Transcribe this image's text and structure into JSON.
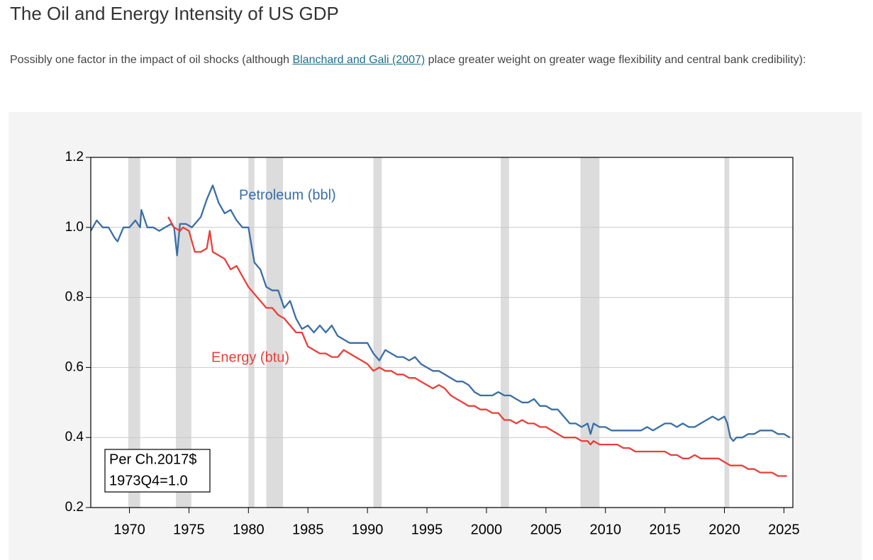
{
  "header": {
    "title": "The Oil and Energy Intensity of US GDP"
  },
  "paragraph": {
    "text_before": "Possibly one factor in the impact of oil shocks (although ",
    "link": "Blanchard and Gali (2007)",
    "text_after": " place greater weight on greater wage flexibility and central bank credibility):"
  },
  "chart_data": {
    "type": "line",
    "xlim": [
      1966.75,
      2025.75
    ],
    "ylim": [
      0.2,
      1.2
    ],
    "xticks": [
      1970,
      1975,
      1980,
      1985,
      1990,
      1995,
      2000,
      2005,
      2010,
      2015,
      2020,
      2025
    ],
    "yticks": [
      0.2,
      0.4,
      0.6,
      0.8,
      {
        "value": 1,
        "label": "1.0"
      },
      1.2
    ],
    "grid": true,
    "shaded_regions": [
      [
        1969.9,
        1970.9
      ],
      [
        1973.9,
        1975.2
      ],
      [
        1980.0,
        1980.5
      ],
      [
        1981.5,
        1982.9
      ],
      [
        1990.5,
        1991.2
      ],
      [
        2001.2,
        2001.9
      ],
      [
        2007.9,
        2009.5
      ],
      [
        2020.0,
        2020.4
      ]
    ],
    "shade_color": "#dcdcdc",
    "annotations": [
      "Petroleum (bbl)",
      "Energy (btu)"
    ],
    "note": [
      "Per Ch.2017$",
      "1973Q4=1.0"
    ],
    "series": [
      {
        "name": "Petroleum (bbl)",
        "color": "#3a6ea5",
        "x": [
          1966.75,
          1967.25,
          1967.75,
          1968.25,
          1968.75,
          1969.0,
          1969.5,
          1970.0,
          1970.5,
          1970.9,
          1971.0,
          1971.5,
          1972.0,
          1972.5,
          1973.0,
          1973.5,
          1973.75,
          1974.0,
          1974.25,
          1974.75,
          1975.25,
          1975.75,
          1976.0,
          1976.5,
          1977.0,
          1977.5,
          1978.0,
          1978.5,
          1979.0,
          1979.5,
          1980.0,
          1980.5,
          1981.0,
          1981.5,
          1982.0,
          1982.5,
          1983.0,
          1983.5,
          1984.0,
          1984.5,
          1985.0,
          1985.5,
          1986.0,
          1986.5,
          1987.0,
          1987.5,
          1988.0,
          1988.5,
          1989.0,
          1989.5,
          1990.0,
          1990.5,
          1991.0,
          1991.5,
          1992.0,
          1992.5,
          1993.0,
          1993.5,
          1994.0,
          1994.5,
          1995.0,
          1995.5,
          1996.0,
          1996.5,
          1997.0,
          1997.5,
          1998.0,
          1998.5,
          1999.0,
          1999.5,
          2000.0,
          2000.5,
          2001.0,
          2001.5,
          2002.0,
          2002.5,
          2003.0,
          2003.5,
          2004.0,
          2004.5,
          2005.0,
          2005.5,
          2006.0,
          2006.5,
          2007.0,
          2007.5,
          2008.0,
          2008.5,
          2008.75,
          2009.0,
          2009.5,
          2010.0,
          2010.5,
          2011.0,
          2011.5,
          2012.0,
          2012.5,
          2013.0,
          2013.5,
          2014.0,
          2014.5,
          2015.0,
          2015.5,
          2016.0,
          2016.5,
          2017.0,
          2017.5,
          2018.0,
          2018.5,
          2019.0,
          2019.5,
          2020.0,
          2020.25,
          2020.5,
          2020.75,
          2021.0,
          2021.5,
          2022.0,
          2022.5,
          2023.0,
          2023.5,
          2024.0,
          2024.5,
          2025.0,
          2025.5
        ],
        "values": [
          0.99,
          1.02,
          1.0,
          1.0,
          0.97,
          0.96,
          1.0,
          1.0,
          1.02,
          1.0,
          1.05,
          1.0,
          1.0,
          0.99,
          1.0,
          1.01,
          1.0,
          0.92,
          1.01,
          1.01,
          1.0,
          1.02,
          1.03,
          1.08,
          1.12,
          1.07,
          1.04,
          1.05,
          1.02,
          1.0,
          1.0,
          0.9,
          0.88,
          0.83,
          0.82,
          0.82,
          0.77,
          0.79,
          0.74,
          0.71,
          0.72,
          0.7,
          0.72,
          0.7,
          0.72,
          0.69,
          0.68,
          0.67,
          0.67,
          0.67,
          0.67,
          0.64,
          0.62,
          0.65,
          0.64,
          0.63,
          0.63,
          0.62,
          0.63,
          0.61,
          0.6,
          0.59,
          0.59,
          0.58,
          0.57,
          0.56,
          0.56,
          0.55,
          0.53,
          0.52,
          0.52,
          0.52,
          0.53,
          0.52,
          0.52,
          0.51,
          0.5,
          0.5,
          0.51,
          0.49,
          0.49,
          0.48,
          0.48,
          0.46,
          0.44,
          0.44,
          0.43,
          0.44,
          0.41,
          0.44,
          0.43,
          0.43,
          0.42,
          0.42,
          0.42,
          0.42,
          0.42,
          0.42,
          0.43,
          0.42,
          0.43,
          0.44,
          0.44,
          0.43,
          0.44,
          0.43,
          0.43,
          0.44,
          0.45,
          0.46,
          0.45,
          0.46,
          0.44,
          0.4,
          0.39,
          0.4,
          0.4,
          0.41,
          0.41,
          0.42,
          0.42,
          0.42,
          0.41,
          0.41,
          0.4
        ]
      },
      {
        "name": "Energy (btu)",
        "color": "#e8403a",
        "x": [
          1973.25,
          1973.75,
          1974.25,
          1974.5,
          1975.0,
          1975.5,
          1976.0,
          1976.5,
          1976.75,
          1977.0,
          1977.5,
          1978.0,
          1978.5,
          1979.0,
          1979.5,
          1980.0,
          1980.5,
          1981.0,
          1981.5,
          1982.0,
          1982.5,
          1983.0,
          1983.5,
          1984.0,
          1984.5,
          1985.0,
          1985.5,
          1986.0,
          1986.5,
          1987.0,
          1987.5,
          1988.0,
          1988.5,
          1989.0,
          1989.5,
          1990.0,
          1990.5,
          1991.0,
          1991.5,
          1992.0,
          1992.5,
          1993.0,
          1993.5,
          1994.0,
          1994.5,
          1995.0,
          1995.5,
          1996.0,
          1996.5,
          1997.0,
          1997.5,
          1998.0,
          1998.5,
          1999.0,
          1999.5,
          2000.0,
          2000.5,
          2001.0,
          2001.5,
          2002.0,
          2002.5,
          2003.0,
          2003.5,
          2004.0,
          2004.5,
          2005.0,
          2005.5,
          2006.0,
          2006.5,
          2007.0,
          2007.5,
          2008.0,
          2008.5,
          2008.75,
          2009.0,
          2009.5,
          2010.0,
          2010.5,
          2011.0,
          2011.5,
          2012.0,
          2012.5,
          2013.0,
          2013.5,
          2014.0,
          2014.5,
          2015.0,
          2015.5,
          2016.0,
          2016.5,
          2017.0,
          2017.5,
          2018.0,
          2018.5,
          2019.0,
          2019.5,
          2020.0,
          2020.5,
          2021.0,
          2021.5,
          2022.0,
          2022.5,
          2023.0,
          2023.5,
          2024.0,
          2024.5,
          2025.0,
          2025.25
        ],
        "values": [
          1.03,
          1.0,
          0.99,
          1.0,
          0.99,
          0.93,
          0.93,
          0.94,
          0.99,
          0.93,
          0.92,
          0.91,
          0.88,
          0.89,
          0.86,
          0.83,
          0.81,
          0.79,
          0.77,
          0.77,
          0.75,
          0.74,
          0.72,
          0.7,
          0.7,
          0.66,
          0.65,
          0.64,
          0.64,
          0.63,
          0.63,
          0.65,
          0.64,
          0.63,
          0.62,
          0.61,
          0.59,
          0.6,
          0.59,
          0.59,
          0.58,
          0.58,
          0.57,
          0.57,
          0.56,
          0.55,
          0.54,
          0.55,
          0.54,
          0.52,
          0.51,
          0.5,
          0.49,
          0.49,
          0.48,
          0.48,
          0.47,
          0.47,
          0.45,
          0.45,
          0.44,
          0.45,
          0.44,
          0.44,
          0.43,
          0.43,
          0.42,
          0.41,
          0.4,
          0.4,
          0.4,
          0.39,
          0.39,
          0.38,
          0.39,
          0.38,
          0.38,
          0.38,
          0.38,
          0.37,
          0.37,
          0.36,
          0.36,
          0.36,
          0.36,
          0.36,
          0.36,
          0.35,
          0.35,
          0.34,
          0.34,
          0.35,
          0.34,
          0.34,
          0.34,
          0.34,
          0.33,
          0.32,
          0.32,
          0.32,
          0.31,
          0.31,
          0.3,
          0.3,
          0.3,
          0.29,
          0.29,
          0.29
        ]
      }
    ]
  }
}
